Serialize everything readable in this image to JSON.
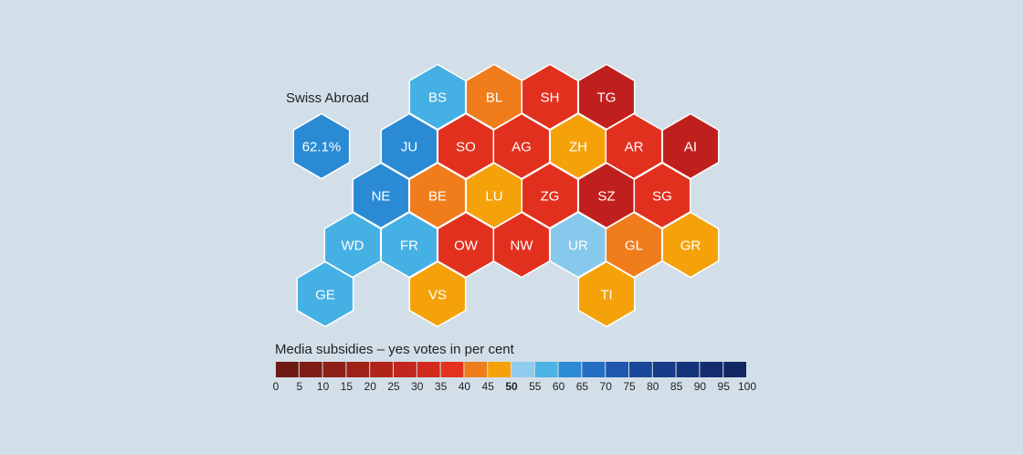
{
  "swiss_abroad": {
    "label": "Swiss Abroad",
    "value": "62.1%",
    "color": "#2a8ad4"
  },
  "cantons": [
    {
      "code": "BS",
      "color": "#45b0e4"
    },
    {
      "code": "BL",
      "color": "#ef7d1c"
    },
    {
      "code": "SH",
      "color": "#e2301f"
    },
    {
      "code": "TG",
      "color": "#c0201d"
    },
    {
      "code": "JU",
      "color": "#2a8ad4"
    },
    {
      "code": "SO",
      "color": "#e2301f"
    },
    {
      "code": "AG",
      "color": "#e2301f"
    },
    {
      "code": "ZH",
      "color": "#f5a20a"
    },
    {
      "code": "AR",
      "color": "#e2301f"
    },
    {
      "code": "AI",
      "color": "#c0201d"
    },
    {
      "code": "NE",
      "color": "#2a8ad4"
    },
    {
      "code": "BE",
      "color": "#ef7d1c"
    },
    {
      "code": "LU",
      "color": "#f5a20a"
    },
    {
      "code": "ZG",
      "color": "#e2301f"
    },
    {
      "code": "SZ",
      "color": "#c0201d"
    },
    {
      "code": "SG",
      "color": "#e2301f"
    },
    {
      "code": "WD",
      "color": "#45b0e4"
    },
    {
      "code": "FR",
      "color": "#45b0e4"
    },
    {
      "code": "OW",
      "color": "#e2301f"
    },
    {
      "code": "NW",
      "color": "#e2301f"
    },
    {
      "code": "UR",
      "color": "#86c9ec"
    },
    {
      "code": "GL",
      "color": "#ef7d1c"
    },
    {
      "code": "GR",
      "color": "#f5a20a"
    },
    {
      "code": "GE",
      "color": "#45b0e4"
    },
    {
      "code": "VS",
      "color": "#f5a20a"
    },
    {
      "code": "TI",
      "color": "#f5a20a"
    }
  ],
  "legend": {
    "title": "Media subsidies – yes votes in per cent",
    "highlight_tick": "50",
    "ticks": [
      "0",
      "5",
      "10",
      "15",
      "20",
      "25",
      "30",
      "35",
      "40",
      "45",
      "50",
      "55",
      "60",
      "65",
      "70",
      "75",
      "80",
      "85",
      "90",
      "95",
      "100"
    ],
    "colors": [
      "#6e1a14",
      "#7e1d16",
      "#8e2017",
      "#9f2218",
      "#b0241a",
      "#c1271c",
      "#d22b1d",
      "#e4321f",
      "#ef7d1c",
      "#f5a20a",
      "#8fcbec",
      "#4db2e4",
      "#2a8ad4",
      "#236ec2",
      "#1e57ad",
      "#1a4799",
      "#173b88",
      "#15337a",
      "#132c6e",
      "#122865"
    ]
  }
}
